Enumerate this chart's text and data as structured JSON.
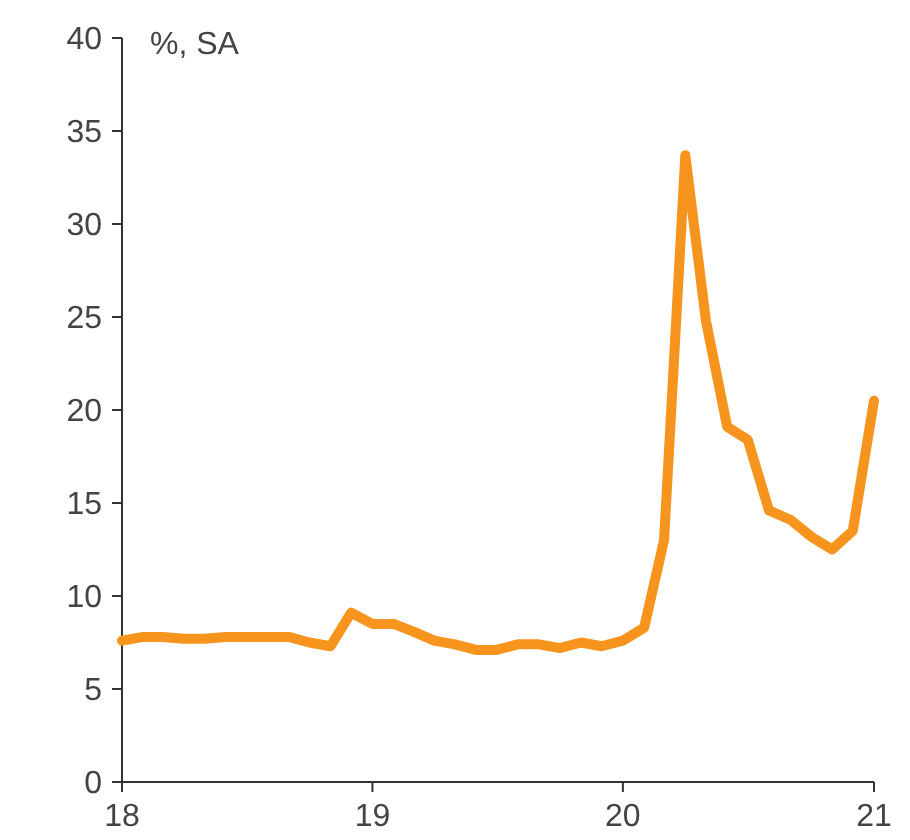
{
  "chart_data": {
    "type": "line",
    "ylabel": "%, SA",
    "x": [
      "2018-01",
      "2018-02",
      "2018-03",
      "2018-04",
      "2018-05",
      "2018-06",
      "2018-07",
      "2018-08",
      "2018-09",
      "2018-10",
      "2018-11",
      "2018-12",
      "2019-01",
      "2019-02",
      "2019-03",
      "2019-04",
      "2019-05",
      "2019-06",
      "2019-07",
      "2019-08",
      "2019-09",
      "2019-10",
      "2019-11",
      "2019-12",
      "2020-01",
      "2020-02",
      "2020-03",
      "2020-04",
      "2020-05",
      "2020-06",
      "2020-07",
      "2020-08",
      "2020-09",
      "2020-10",
      "2020-11",
      "2020-12",
      "2021-01"
    ],
    "series": [
      {
        "color": "#f7941d",
        "values": [
          7.6,
          7.8,
          7.8,
          7.7,
          7.7,
          7.8,
          7.8,
          7.8,
          7.8,
          7.5,
          7.3,
          9.1,
          8.5,
          8.5,
          8.1,
          7.6,
          7.4,
          7.1,
          7.1,
          7.4,
          7.4,
          7.2,
          7.5,
          7.3,
          7.6,
          8.3,
          13.0,
          33.7,
          24.8,
          19.1,
          18.4,
          14.6,
          14.1,
          13.2,
          12.5,
          13.5,
          20.5
        ]
      }
    ],
    "xlim": [
      "2018-01",
      "2021-01"
    ],
    "xticks": [
      {
        "value": "2018-01",
        "label": "18"
      },
      {
        "value": "2019-01",
        "label": "19"
      },
      {
        "value": "2020-01",
        "label": "20"
      },
      {
        "value": "2021-01",
        "label": "21"
      }
    ],
    "ylim": [
      0,
      40
    ],
    "yticks": [
      0,
      5,
      10,
      15,
      20,
      25,
      30,
      35,
      40
    ],
    "grid": false,
    "marker": "none",
    "line_style": "solid"
  }
}
